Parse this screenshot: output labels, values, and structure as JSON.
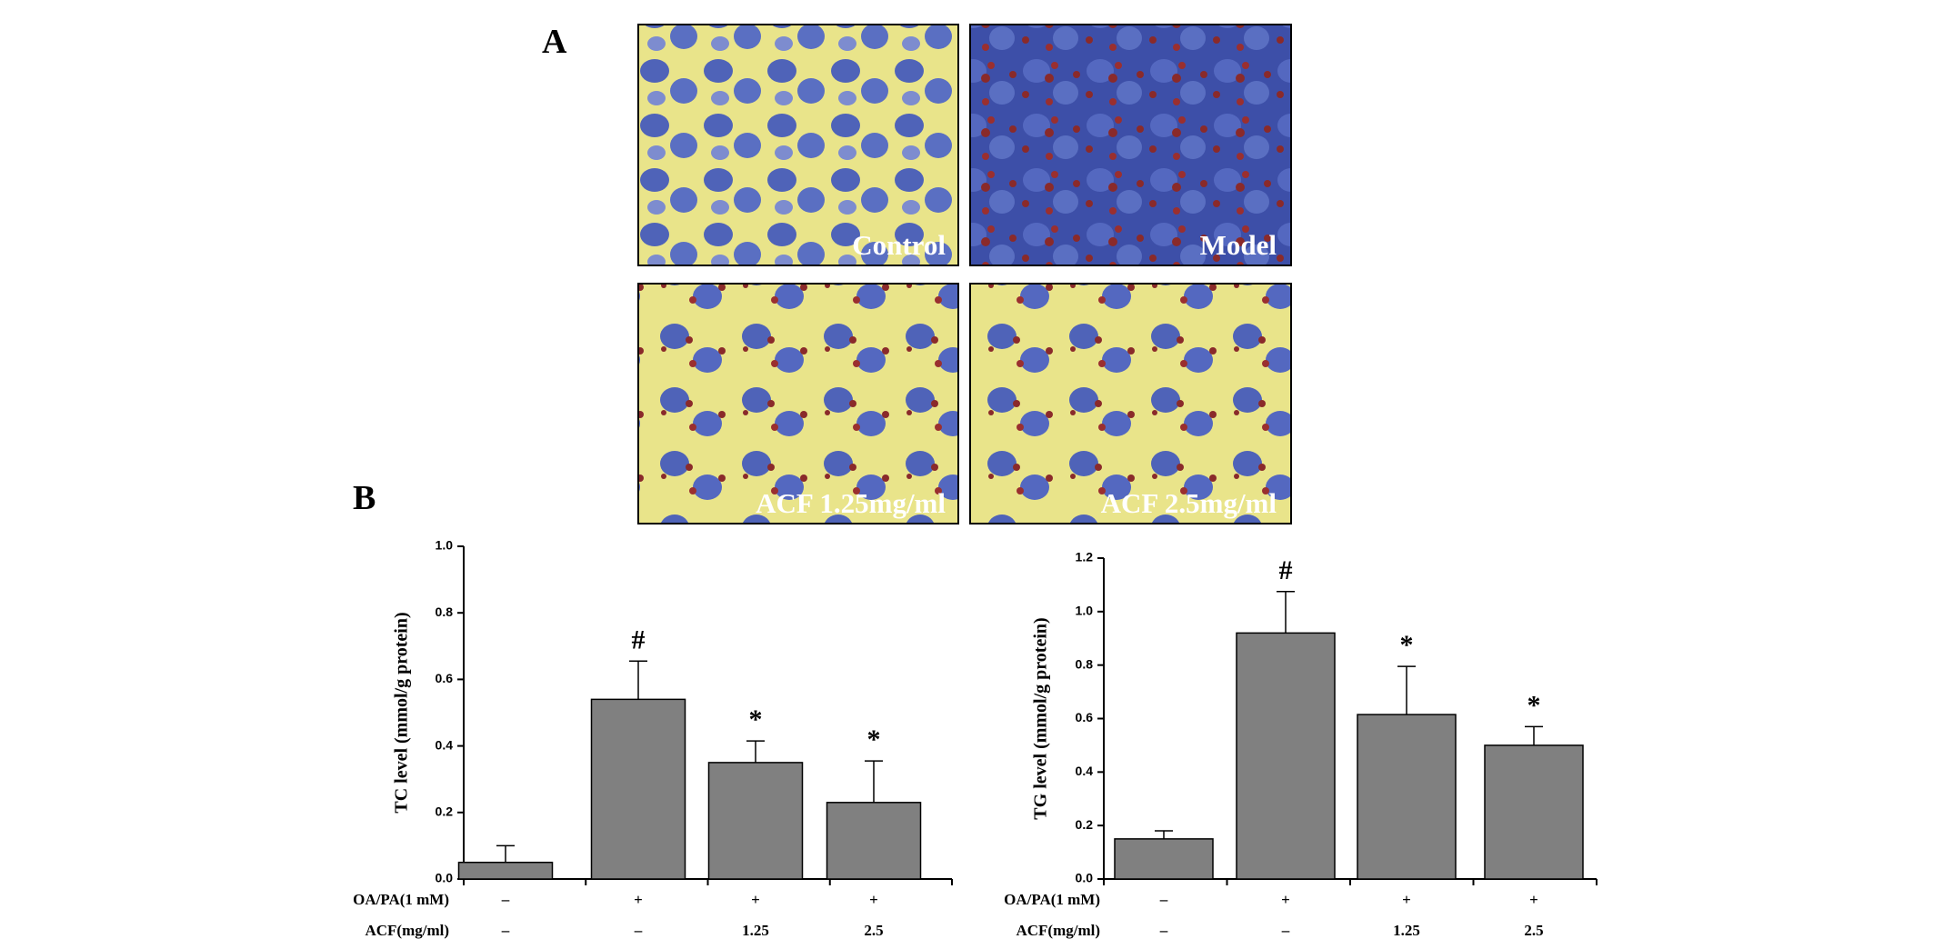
{
  "panels": {
    "a": {
      "label": "A",
      "images": [
        "Control",
        "Model",
        "ACF 1.25mg/ml",
        "ACF 2.5mg/ml"
      ]
    },
    "b": {
      "label": "B"
    }
  },
  "chart_data": [
    {
      "type": "bar",
      "ylabel": "TC level (mmol/g protein)",
      "color": "#808080",
      "values": [
        0.05,
        0.54,
        0.35,
        0.23
      ],
      "errors": [
        0.05,
        0.115,
        0.065,
        0.125
      ],
      "annotations": [
        null,
        "#",
        "*",
        "*"
      ],
      "conditions": {
        "labels": [
          "OA/PA(1 mM)",
          "ACF(mg/ml)"
        ],
        "rows": [
          [
            "–",
            "+",
            "+",
            "+"
          ],
          [
            "–",
            "–",
            "1.25",
            "2.5"
          ]
        ]
      },
      "ylim": [
        0,
        1.0
      ],
      "yticks": [
        {
          "value": 0,
          "label": "0.0"
        },
        0.2,
        0.4,
        0.6,
        0.8,
        {
          "value": 1,
          "label": "1.0"
        }
      ]
    },
    {
      "type": "bar",
      "ylabel": "TG level (mmol/g protein)",
      "color": "#808080",
      "values": [
        0.15,
        0.92,
        0.615,
        0.5
      ],
      "errors": [
        0.03,
        0.155,
        0.18,
        0.07
      ],
      "annotations": [
        null,
        "#",
        "*",
        "*"
      ],
      "conditions": {
        "labels": [
          "OA/PA(1 mM)",
          "ACF(mg/ml)"
        ],
        "rows": [
          [
            "–",
            "+",
            "+",
            "+"
          ],
          [
            "–",
            "–",
            "1.25",
            "2.5"
          ]
        ]
      },
      "ylim": [
        0,
        1.2
      ],
      "yticks": [
        {
          "value": 0,
          "label": "0.0"
        },
        0.2,
        0.4,
        0.6,
        0.8,
        {
          "value": 1,
          "label": "1.0"
        },
        1.2
      ]
    }
  ]
}
